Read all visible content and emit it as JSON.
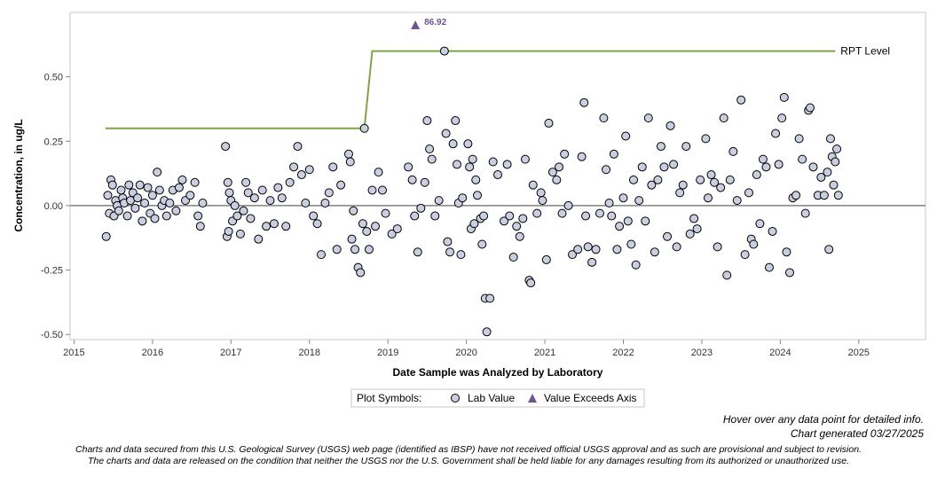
{
  "chart_data": {
    "type": "scatter",
    "title": "",
    "xlabel": "Date Sample was Analyzed by Laboratory",
    "ylabel": "Concentration, in ug/L",
    "xlim": [
      2014.95,
      2025.85
    ],
    "ylim": [
      -0.52,
      0.75
    ],
    "x_ticks": [
      "2015",
      "2016",
      "2017",
      "2018",
      "2019",
      "2020",
      "2021",
      "2022",
      "2023",
      "2024",
      "2025"
    ],
    "y_ticks": [
      "0.50",
      "0.25",
      "0.00",
      "-0.25",
      "-0.50"
    ],
    "reference_line": {
      "label": "RPT Level",
      "color": "#7fa642",
      "segments": [
        {
          "x": [
            2015.4,
            2018.7
          ],
          "y": 0.3
        },
        {
          "x": [
            2018.8,
            2024.7
          ],
          "y": 0.6
        }
      ]
    },
    "exceeds_axis": [
      {
        "x": 2019.35,
        "value": 86.92,
        "label": "86.92"
      }
    ],
    "legend": {
      "title": "Plot Symbols:",
      "items": [
        "Lab Value",
        "Value Exceeds Axis"
      ]
    },
    "marker_fill": "#c9cfe0",
    "exceed_color": "#6e5494",
    "zero_line": true,
    "grid": false,
    "series": [
      {
        "name": "Lab Value",
        "points": [
          [
            2015.41,
            -0.12
          ],
          [
            2015.43,
            0.04
          ],
          [
            2015.45,
            -0.03
          ],
          [
            2015.47,
            0.1
          ],
          [
            2015.49,
            0.08
          ],
          [
            2015.51,
            -0.04
          ],
          [
            2015.53,
            0.02
          ],
          [
            2015.55,
            0.0
          ],
          [
            2015.57,
            -0.02
          ],
          [
            2015.6,
            0.06
          ],
          [
            2015.62,
            0.03
          ],
          [
            2015.64,
            0.01
          ],
          [
            2015.68,
            -0.04
          ],
          [
            2015.7,
            0.08
          ],
          [
            2015.72,
            0.02
          ],
          [
            2015.75,
            0.05
          ],
          [
            2015.78,
            -0.01
          ],
          [
            2015.81,
            0.03
          ],
          [
            2015.84,
            0.08
          ],
          [
            2015.87,
            -0.06
          ],
          [
            2015.9,
            0.01
          ],
          [
            2015.94,
            0.07
          ],
          [
            2015.97,
            -0.03
          ],
          [
            2016.0,
            0.04
          ],
          [
            2016.03,
            -0.05
          ],
          [
            2016.06,
            0.13
          ],
          [
            2016.09,
            0.06
          ],
          [
            2016.12,
            0.0
          ],
          [
            2016.15,
            0.02
          ],
          [
            2016.18,
            -0.04
          ],
          [
            2016.22,
            0.01
          ],
          [
            2016.26,
            0.06
          ],
          [
            2016.3,
            -0.02
          ],
          [
            2016.34,
            0.07
          ],
          [
            2016.38,
            0.1
          ],
          [
            2016.42,
            0.02
          ],
          [
            2016.48,
            0.04
          ],
          [
            2016.54,
            0.09
          ],
          [
            2016.58,
            -0.04
          ],
          [
            2016.61,
            -0.08
          ],
          [
            2016.64,
            0.01
          ],
          [
            2016.93,
            0.23
          ],
          [
            2016.95,
            -0.12
          ],
          [
            2016.96,
            0.09
          ],
          [
            2016.97,
            -0.1
          ],
          [
            2016.98,
            0.05
          ],
          [
            2017.0,
            0.02
          ],
          [
            2017.02,
            -0.06
          ],
          [
            2017.05,
            0.0
          ],
          [
            2017.08,
            -0.04
          ],
          [
            2017.12,
            -0.11
          ],
          [
            2017.16,
            -0.02
          ],
          [
            2017.19,
            0.09
          ],
          [
            2017.22,
            0.05
          ],
          [
            2017.25,
            -0.05
          ],
          [
            2017.3,
            0.03
          ],
          [
            2017.35,
            -0.13
          ],
          [
            2017.4,
            0.06
          ],
          [
            2017.45,
            -0.08
          ],
          [
            2017.5,
            0.02
          ],
          [
            2017.55,
            -0.07
          ],
          [
            2017.6,
            0.07
          ],
          [
            2017.65,
            0.03
          ],
          [
            2017.7,
            -0.08
          ],
          [
            2017.75,
            0.09
          ],
          [
            2017.8,
            0.15
          ],
          [
            2017.85,
            0.23
          ],
          [
            2017.9,
            0.12
          ],
          [
            2017.95,
            0.01
          ],
          [
            2018.0,
            0.14
          ],
          [
            2018.05,
            -0.04
          ],
          [
            2018.1,
            -0.07
          ],
          [
            2018.15,
            -0.19
          ],
          [
            2018.2,
            0.01
          ],
          [
            2018.25,
            0.05
          ],
          [
            2018.3,
            0.15
          ],
          [
            2018.35,
            -0.17
          ],
          [
            2018.4,
            0.08
          ],
          [
            2018.5,
            0.2
          ],
          [
            2018.52,
            0.17
          ],
          [
            2018.54,
            -0.13
          ],
          [
            2018.56,
            -0.02
          ],
          [
            2018.58,
            -0.17
          ],
          [
            2018.62,
            -0.24
          ],
          [
            2018.65,
            -0.26
          ],
          [
            2018.68,
            -0.07
          ],
          [
            2018.7,
            0.3
          ],
          [
            2018.73,
            -0.1
          ],
          [
            2018.76,
            -0.17
          ],
          [
            2018.8,
            0.06
          ],
          [
            2018.84,
            -0.08
          ],
          [
            2018.88,
            0.13
          ],
          [
            2018.93,
            0.06
          ],
          [
            2018.97,
            -0.03
          ],
          [
            2019.05,
            -0.11
          ],
          [
            2019.12,
            -0.09
          ],
          [
            2019.26,
            0.15
          ],
          [
            2019.31,
            0.1
          ],
          [
            2019.34,
            -0.04
          ],
          [
            2019.38,
            -0.18
          ],
          [
            2019.42,
            -0.01
          ],
          [
            2019.47,
            0.09
          ],
          [
            2019.5,
            0.33
          ],
          [
            2019.53,
            0.22
          ],
          [
            2019.56,
            0.18
          ],
          [
            2019.6,
            -0.04
          ],
          [
            2019.65,
            0.02
          ],
          [
            2019.72,
            0.6
          ],
          [
            2019.74,
            0.28
          ],
          [
            2019.76,
            -0.14
          ],
          [
            2019.79,
            -0.18
          ],
          [
            2019.83,
            0.24
          ],
          [
            2019.86,
            0.33
          ],
          [
            2019.88,
            0.16
          ],
          [
            2019.9,
            0.01
          ],
          [
            2019.93,
            -0.19
          ],
          [
            2019.95,
            0.03
          ],
          [
            2020.02,
            0.24
          ],
          [
            2020.04,
            0.15
          ],
          [
            2020.06,
            -0.09
          ],
          [
            2020.08,
            0.18
          ],
          [
            2020.1,
            -0.07
          ],
          [
            2020.12,
            0.1
          ],
          [
            2020.14,
            0.04
          ],
          [
            2020.18,
            -0.05
          ],
          [
            2020.2,
            -0.15
          ],
          [
            2020.22,
            -0.04
          ],
          [
            2020.24,
            -0.36
          ],
          [
            2020.26,
            -0.49
          ],
          [
            2020.3,
            -0.36
          ],
          [
            2020.34,
            0.17
          ],
          [
            2020.4,
            0.12
          ],
          [
            2020.48,
            -0.06
          ],
          [
            2020.52,
            0.16
          ],
          [
            2020.55,
            -0.04
          ],
          [
            2020.6,
            -0.2
          ],
          [
            2020.64,
            -0.08
          ],
          [
            2020.68,
            -0.12
          ],
          [
            2020.72,
            -0.05
          ],
          [
            2020.75,
            0.18
          ],
          [
            2020.8,
            -0.29
          ],
          [
            2020.82,
            -0.3
          ],
          [
            2020.85,
            0.08
          ],
          [
            2020.9,
            -0.03
          ],
          [
            2020.95,
            0.05
          ],
          [
            2020.97,
            0.02
          ],
          [
            2021.02,
            -0.21
          ],
          [
            2021.05,
            0.32
          ],
          [
            2021.1,
            0.13
          ],
          [
            2021.15,
            0.1
          ],
          [
            2021.18,
            0.15
          ],
          [
            2021.22,
            -0.03
          ],
          [
            2021.25,
            0.2
          ],
          [
            2021.3,
            0.0
          ],
          [
            2021.35,
            -0.19
          ],
          [
            2021.42,
            -0.17
          ],
          [
            2021.47,
            0.19
          ],
          [
            2021.5,
            0.4
          ],
          [
            2021.52,
            -0.04
          ],
          [
            2021.55,
            -0.16
          ],
          [
            2021.6,
            -0.22
          ],
          [
            2021.65,
            -0.17
          ],
          [
            2021.7,
            -0.03
          ],
          [
            2021.75,
            0.34
          ],
          [
            2021.78,
            0.14
          ],
          [
            2021.82,
            0.01
          ],
          [
            2021.85,
            -0.04
          ],
          [
            2021.88,
            0.2
          ],
          [
            2021.92,
            -0.17
          ],
          [
            2021.95,
            -0.08
          ],
          [
            2022.0,
            0.03
          ],
          [
            2022.03,
            0.27
          ],
          [
            2022.06,
            -0.06
          ],
          [
            2022.1,
            -0.15
          ],
          [
            2022.13,
            0.1
          ],
          [
            2022.16,
            -0.23
          ],
          [
            2022.2,
            0.02
          ],
          [
            2022.24,
            0.15
          ],
          [
            2022.28,
            -0.06
          ],
          [
            2022.32,
            0.34
          ],
          [
            2022.36,
            0.08
          ],
          [
            2022.4,
            -0.18
          ],
          [
            2022.44,
            0.1
          ],
          [
            2022.48,
            0.23
          ],
          [
            2022.52,
            0.15
          ],
          [
            2022.56,
            -0.12
          ],
          [
            2022.6,
            0.31
          ],
          [
            2022.64,
            0.16
          ],
          [
            2022.68,
            -0.16
          ],
          [
            2022.72,
            0.05
          ],
          [
            2022.76,
            0.08
          ],
          [
            2022.8,
            0.23
          ],
          [
            2022.85,
            -0.11
          ],
          [
            2022.9,
            -0.05
          ],
          [
            2022.94,
            -0.09
          ],
          [
            2022.98,
            0.1
          ],
          [
            2023.05,
            0.26
          ],
          [
            2023.08,
            0.03
          ],
          [
            2023.12,
            0.12
          ],
          [
            2023.16,
            0.09
          ],
          [
            2023.2,
            -0.16
          ],
          [
            2023.24,
            0.07
          ],
          [
            2023.28,
            0.34
          ],
          [
            2023.32,
            -0.27
          ],
          [
            2023.36,
            0.1
          ],
          [
            2023.4,
            0.21
          ],
          [
            2023.45,
            0.02
          ],
          [
            2023.5,
            0.41
          ],
          [
            2023.55,
            -0.19
          ],
          [
            2023.6,
            0.05
          ],
          [
            2023.63,
            -0.13
          ],
          [
            2023.66,
            -0.15
          ],
          [
            2023.7,
            0.12
          ],
          [
            2023.74,
            -0.07
          ],
          [
            2023.78,
            0.18
          ],
          [
            2023.82,
            0.15
          ],
          [
            2023.86,
            -0.24
          ],
          [
            2023.9,
            -0.1
          ],
          [
            2023.94,
            0.28
          ],
          [
            2023.98,
            0.16
          ],
          [
            2024.02,
            0.34
          ],
          [
            2024.05,
            0.42
          ],
          [
            2024.08,
            -0.18
          ],
          [
            2024.12,
            -0.26
          ],
          [
            2024.16,
            0.03
          ],
          [
            2024.2,
            0.04
          ],
          [
            2024.24,
            0.26
          ],
          [
            2024.28,
            0.18
          ],
          [
            2024.32,
            -0.03
          ],
          [
            2024.36,
            0.37
          ],
          [
            2024.38,
            0.38
          ],
          [
            2024.42,
            0.15
          ],
          [
            2024.48,
            0.04
          ],
          [
            2024.52,
            0.11
          ],
          [
            2024.56,
            0.04
          ],
          [
            2024.6,
            0.13
          ],
          [
            2024.62,
            -0.17
          ],
          [
            2024.64,
            0.26
          ],
          [
            2024.66,
            0.19
          ],
          [
            2024.68,
            0.08
          ],
          [
            2024.7,
            0.17
          ],
          [
            2024.72,
            0.22
          ],
          [
            2024.74,
            0.04
          ]
        ]
      }
    ]
  },
  "notes": {
    "hover": "Hover over any data point for detailed info.",
    "generated": "Chart generated 03/27/2025",
    "disclaimer_1": "Charts and data secured from this U.S. Geological Survey (USGS) web page (identified as IBSP) have not received official USGS approval and as such are provisional and subject to revision.",
    "disclaimer_2": "The charts and data are released on the condition that neither the USGS nor the U.S. Government shall be held liable for any damages resulting from its authorized or unauthorized use."
  }
}
